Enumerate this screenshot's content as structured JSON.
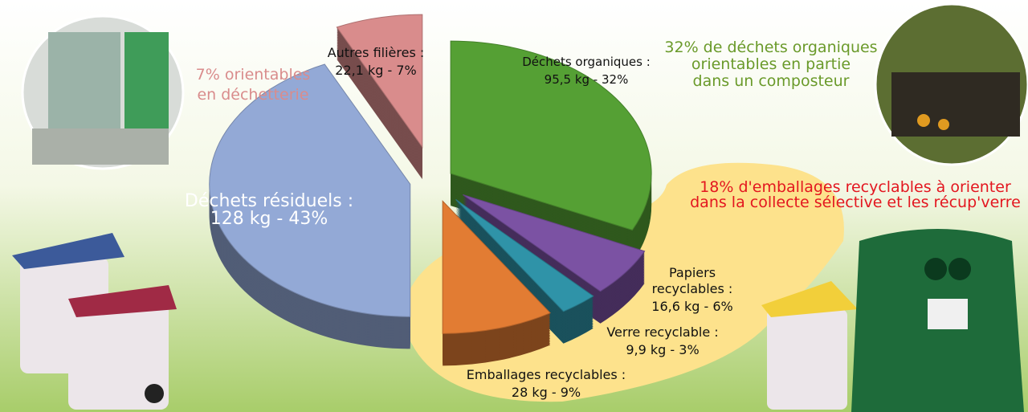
{
  "chart_data": {
    "type": "pie",
    "categories": [
      "Déchets organiques :",
      "Papiers recyclables :",
      "Verre recyclable :",
      "Emballages recyclables :",
      "Déchets résiduels :",
      "Autres filières :"
    ],
    "values": [
      32,
      6,
      3,
      9,
      43,
      7
    ],
    "value_labels": [
      "95,5 kg - 32%",
      "16,6 kg - 6%",
      "9,9 kg - 3%",
      "28 kg - 9%",
      "128 kg - 43%",
      "22,1 kg - 7%"
    ],
    "colors": [
      "#55a034",
      "#7b52a3",
      "#2f93a8",
      "#e27c33",
      "#93a9d6",
      "#d98c8c"
    ],
    "annotations": [
      [
        "7% orientables",
        "en déchetterie"
      ],
      [
        "32% de déchets organiques",
        "orientables en partie",
        "dans un composteur"
      ],
      [
        "18% d'emballages recyclables à orienter",
        "dans la collecte sélective et les récup'verre"
      ]
    ]
  }
}
